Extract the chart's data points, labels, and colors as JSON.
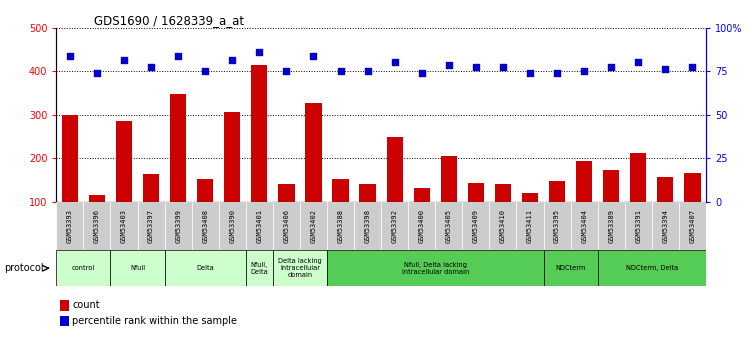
{
  "title": "GDS1690 / 1628339_a_at",
  "samples": [
    "GSM53393",
    "GSM53396",
    "GSM53403",
    "GSM53397",
    "GSM53399",
    "GSM53408",
    "GSM53390",
    "GSM53401",
    "GSM53406",
    "GSM53402",
    "GSM53388",
    "GSM53398",
    "GSM53392",
    "GSM53400",
    "GSM53405",
    "GSM53409",
    "GSM53410",
    "GSM53411",
    "GSM53395",
    "GSM53404",
    "GSM53389",
    "GSM53391",
    "GSM53394",
    "GSM53407"
  ],
  "counts": [
    300,
    115,
    285,
    163,
    347,
    152,
    307,
    415,
    140,
    328,
    153,
    140,
    248,
    132,
    205,
    143,
    140,
    120,
    148,
    193,
    172,
    213,
    157,
    167
  ],
  "percentile_raw": [
    435,
    395,
    425,
    410,
    435,
    400,
    425,
    445,
    400,
    435,
    400,
    400,
    420,
    395,
    415,
    410,
    410,
    395,
    395,
    400,
    410,
    420,
    405,
    410
  ],
  "groups": [
    {
      "label": "control",
      "start": 0,
      "end": 2,
      "color": "#ccffcc"
    },
    {
      "label": "Nfull",
      "start": 2,
      "end": 4,
      "color": "#ccffcc"
    },
    {
      "label": "Delta",
      "start": 4,
      "end": 7,
      "color": "#ccffcc"
    },
    {
      "label": "Nfull,\nDelta",
      "start": 7,
      "end": 8,
      "color": "#ccffcc"
    },
    {
      "label": "Delta lacking\nintracellular\ndomain",
      "start": 8,
      "end": 10,
      "color": "#ccffcc"
    },
    {
      "label": "Nfull, Delta lacking\nintracellular domain",
      "start": 10,
      "end": 18,
      "color": "#55cc55"
    },
    {
      "label": "NDCterm",
      "start": 18,
      "end": 20,
      "color": "#55cc55"
    },
    {
      "label": "NDCterm, Delta",
      "start": 20,
      "end": 24,
      "color": "#55cc55"
    }
  ],
  "bar_color": "#cc0000",
  "dot_color": "#0000cc",
  "ylim_left": [
    100,
    500
  ],
  "ylim_right": [
    0,
    100
  ],
  "yticks_left": [
    100,
    200,
    300,
    400,
    500
  ],
  "yticks_right": [
    0,
    25,
    50,
    75,
    100
  ],
  "bg_color": "#ffffff",
  "plot_bg": "#ffffff",
  "sample_box_color": "#cccccc",
  "light_green": "#ccffcc",
  "dark_green": "#55cc55"
}
